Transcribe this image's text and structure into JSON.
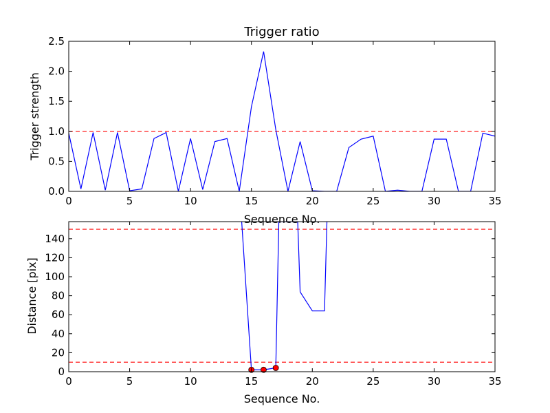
{
  "chart_data": [
    {
      "type": "line",
      "title": "Trigger ratio",
      "xlabel": "Sequence No.",
      "ylabel": "Trigger strength",
      "xlim": [
        0,
        35
      ],
      "ylim": [
        0,
        2.5
      ],
      "xticks": [
        "0",
        "5",
        "10",
        "15",
        "20",
        "25",
        "30",
        "35"
      ],
      "yticks": [
        "0.0",
        "0.5",
        "1.0",
        "1.5",
        "2.0",
        "2.5"
      ],
      "grid": false,
      "series": [
        {
          "color": "#0000ff",
          "x": [
            0,
            1,
            2,
            3,
            4,
            5,
            6,
            7,
            8,
            9,
            10,
            11,
            12,
            13,
            14,
            15,
            16,
            17,
            18,
            19,
            20,
            21,
            22,
            23,
            24,
            25,
            26,
            27,
            28,
            29,
            30,
            31,
            32,
            33,
            34,
            35
          ],
          "y": [
            0.97,
            0.04,
            0.98,
            0.02,
            0.98,
            0.01,
            0.04,
            0.88,
            0.98,
            0.0,
            0.88,
            0.03,
            0.83,
            0.88,
            0.0,
            1.41,
            2.33,
            1.03,
            0.0,
            0.83,
            0.01,
            0.0,
            0.0,
            0.73,
            0.87,
            0.92,
            0.0,
            0.02,
            0.0,
            0.0,
            0.87,
            0.87,
            0.0,
            0.0,
            0.97,
            0.92
          ]
        }
      ],
      "reference_lines": [
        {
          "y": 1.0,
          "style": "dashed",
          "color": "#ff0000"
        }
      ]
    },
    {
      "type": "line",
      "title": "",
      "xlabel": "Sequence No.",
      "ylabel": "Distance [pix]",
      "xlim": [
        0,
        35
      ],
      "ylim": [
        0,
        158
      ],
      "xticks": [
        "0",
        "5",
        "10",
        "15",
        "20",
        "25",
        "30",
        "35"
      ],
      "yticks": [
        "0",
        "20",
        "40",
        "60",
        "80",
        "100",
        "120",
        "140"
      ],
      "grid": false,
      "series": [
        {
          "color": "#0000ff",
          "x": [
            14.2,
            15,
            16,
            17,
            17.25,
            18.8,
            19,
            20,
            21,
            21.2
          ],
          "y": [
            158,
            2,
            2,
            4,
            158,
            158,
            84,
            64,
            64,
            158
          ]
        }
      ],
      "markers": {
        "color": "#ff0000",
        "x": [
          15,
          16,
          17
        ],
        "y": [
          2,
          2,
          4
        ]
      },
      "reference_lines": [
        {
          "y": 150,
          "style": "dashed",
          "color": "#ff0000"
        },
        {
          "y": 10,
          "style": "dashed",
          "color": "#ff0000"
        }
      ]
    }
  ]
}
